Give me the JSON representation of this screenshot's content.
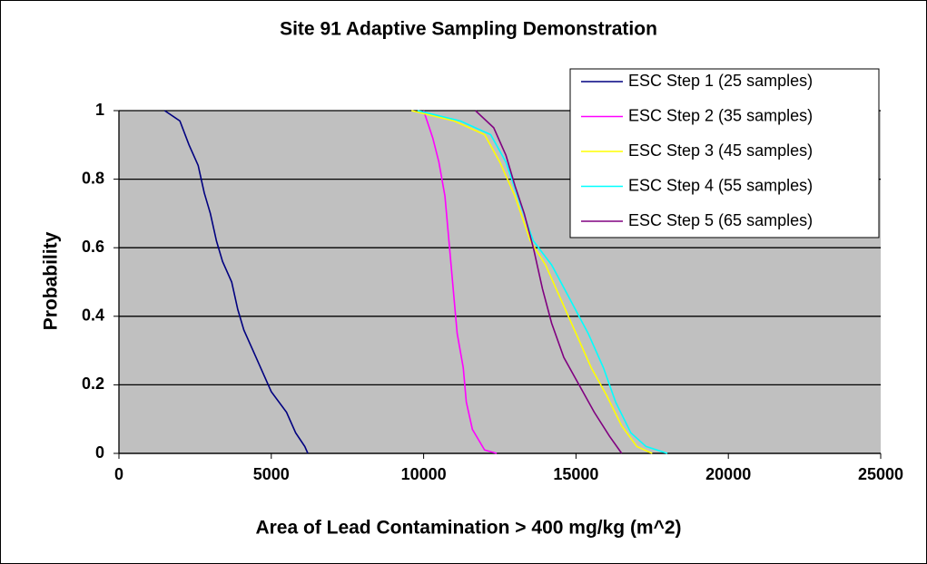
{
  "chart_data": {
    "type": "line",
    "title": "Site 91 Adaptive Sampling Demonstration",
    "xlabel": "Area of Lead Contamination > 400 mg/kg (m^2)",
    "ylabel": "Probability",
    "xlim": [
      0,
      25000
    ],
    "xticks": [
      0,
      5000,
      10000,
      15000,
      20000,
      25000
    ],
    "ylim": [
      0,
      1
    ],
    "yticks": [
      0,
      0.2,
      0.4,
      0.6,
      0.8,
      1
    ],
    "grid": true,
    "legend": "upper right",
    "series": [
      {
        "name": "ESC Step 1 (25 samples)",
        "color": "#000080",
        "x": [
          1500,
          2000,
          2300,
          2600,
          2800,
          3000,
          3200,
          3400,
          3700,
          3900,
          4100,
          4400,
          4700,
          5000,
          5500,
          5800,
          6100,
          6200
        ],
        "values": [
          1,
          0.97,
          0.9,
          0.84,
          0.76,
          0.7,
          0.62,
          0.56,
          0.5,
          0.42,
          0.36,
          0.3,
          0.24,
          0.18,
          0.12,
          0.06,
          0.02,
          0
        ]
      },
      {
        "name": "ESC Step 2 (35 samples)",
        "color": "#ff00ff",
        "x": [
          10000,
          10300,
          10500,
          10700,
          10800,
          10900,
          11000,
          11100,
          11300,
          11400,
          11600,
          12000,
          12400
        ],
        "values": [
          1,
          0.92,
          0.85,
          0.75,
          0.65,
          0.55,
          0.45,
          0.35,
          0.25,
          0.15,
          0.07,
          0.01,
          0
        ]
      },
      {
        "name": "ESC Step 3 (45 samples)",
        "color": "#ffff00",
        "x": [
          9600,
          11000,
          12000,
          12500,
          13000,
          13500,
          14000,
          14500,
          15000,
          15500,
          16000,
          16500,
          17000,
          17500
        ],
        "values": [
          1,
          0.97,
          0.93,
          0.85,
          0.75,
          0.62,
          0.55,
          0.45,
          0.35,
          0.25,
          0.17,
          0.08,
          0.02,
          0
        ]
      },
      {
        "name": "ESC Step 4 (55 samples)",
        "color": "#00ffff",
        "x": [
          9800,
          11200,
          12200,
          12700,
          13200,
          13600,
          14200,
          14800,
          15400,
          15900,
          16300,
          16800,
          17300,
          18000
        ],
        "values": [
          1,
          0.97,
          0.93,
          0.85,
          0.72,
          0.62,
          0.55,
          0.45,
          0.35,
          0.25,
          0.15,
          0.06,
          0.02,
          0
        ]
      },
      {
        "name": "ESC Step 5 (65 samples)",
        "color": "#800080",
        "x": [
          11700,
          12300,
          12700,
          13000,
          13300,
          13600,
          13900,
          14200,
          14600,
          15100,
          15600,
          16100,
          16500
        ],
        "values": [
          1,
          0.95,
          0.87,
          0.78,
          0.7,
          0.6,
          0.48,
          0.38,
          0.28,
          0.2,
          0.12,
          0.05,
          0
        ]
      }
    ]
  }
}
